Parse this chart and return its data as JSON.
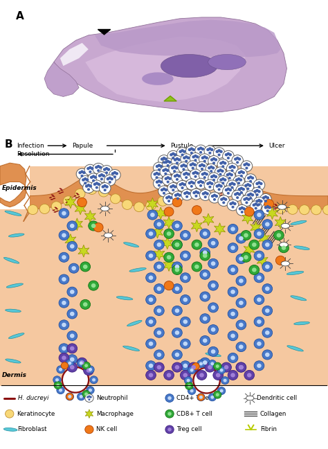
{
  "panel_A_bg": "#c8ead8",
  "panel_B_bg": "#ffffff",
  "skin_color": "#f5c8a0",
  "epidermis_color": "#e09050",
  "epidermis_edge": "#c07030",
  "progression_labels": [
    "Infection",
    "Papule",
    "Pustule",
    "Ulcer"
  ],
  "resolution_label": "Resolution",
  "neutrophil_outer": "#ffffff",
  "neutrophil_edge": "#606060",
  "neutrophil_nucleus": "#4060a0",
  "macrophage_color": "#c8d820",
  "macrophage_edge": "#909000",
  "cd4_color": "#4878c8",
  "cd4_inner": "#c0d8f8",
  "cd4_edge": "#2050a0",
  "cd8_color": "#30a838",
  "cd8_inner": "#90e090",
  "cd8_edge": "#107010",
  "treg_color": "#6040a8",
  "treg_inner": "#a080d8",
  "treg_edge": "#402080",
  "nk_color": "#f07818",
  "nk_edge": "#b04000",
  "keratinocyte_color": "#f8d878",
  "keratinocyte_edge": "#c09030",
  "fibroblast_color": "#58c8d8",
  "fibroblast_edge": "#2090a0",
  "hducreyi_color": "#8b1010",
  "dendritic_color": "#ffffff",
  "dendritic_edge": "#404040",
  "collagen_color": "#303030",
  "vessel_edge": "#8b1010",
  "fibrin_color": "#b8cc00"
}
